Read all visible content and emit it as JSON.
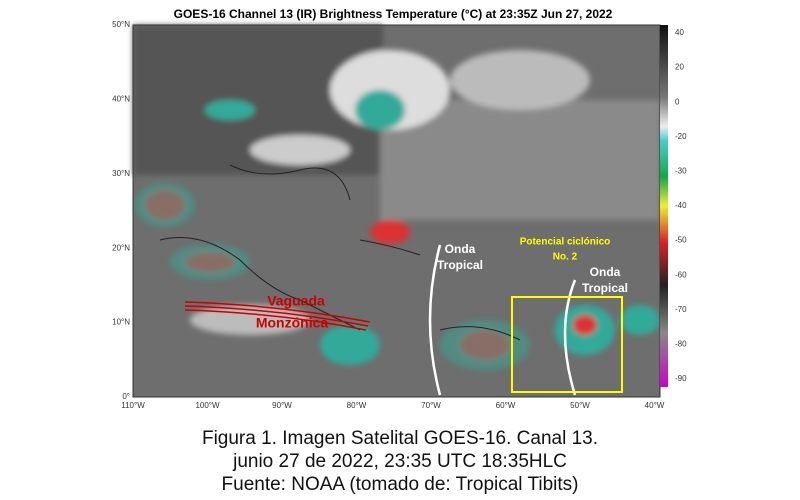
{
  "map": {
    "title": "GOES-16 Channel 13 (IR) Brightness Temperature (°C) at 23:35Z Jun 27, 2022",
    "lat_labels": [
      "50°N",
      "40°N",
      "30°N",
      "20°N",
      "10°N",
      "0°"
    ],
    "lon_labels": [
      "110°W",
      "100°W",
      "90°W",
      "80°W",
      "70°W",
      "60°W",
      "50°W",
      "40°W"
    ],
    "colorbar_ticks": [
      40,
      20,
      0,
      -20,
      -30,
      -40,
      -50,
      -60,
      -70,
      -80,
      -90
    ],
    "annotations": {
      "vaguada": [
        "Vaguada",
        "Monzónica"
      ],
      "onda_1": [
        "Onda",
        "Tropical"
      ],
      "potencial": [
        "Potencial ciclónico",
        "No. 2"
      ],
      "onda_2": [
        "Onda",
        "Tropical"
      ]
    }
  },
  "caption": [
    "Figura 1. Imagen Satelital GOES-16. Canal 13.",
    "junio 27 de 2022, 23:35 UTC 18:35HLC",
    "Fuente: NOAA (tomado de: Tropical Tibits)"
  ]
}
